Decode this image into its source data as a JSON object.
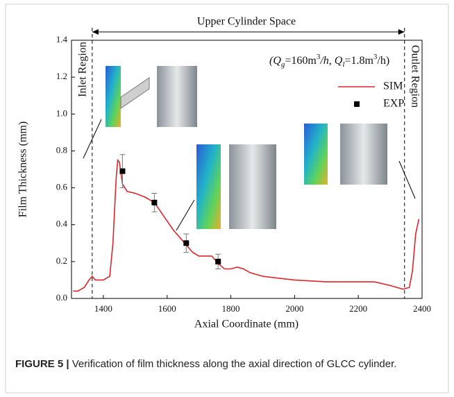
{
  "chart_data": {
    "type": "line",
    "xlabel": "Axial Coordinate (mm)",
    "ylabel": "Film Thickness (mm)",
    "xlim": [
      1300,
      2400
    ],
    "xticks": [
      1400,
      1600,
      1800,
      2000,
      2200,
      2400
    ],
    "ylim": [
      0,
      1.4
    ],
    "yticks": [
      {
        "value": 0,
        "label": "0.0"
      },
      0.2,
      0.4,
      0.6,
      0.8,
      {
        "value": 1,
        "label": "1.0"
      },
      1.2,
      1.4
    ],
    "vlines": [
      1365,
      2345
    ],
    "annotations": {
      "upper": "Upper Cylinder Space",
      "inlet": "Inlet Region",
      "outlet": "Outlet Region",
      "conditions": [
        "(Q",
        "g",
        "=160m",
        "3",
        "/h, Q",
        "l",
        "=1.8m",
        "3",
        "/h)"
      ]
    },
    "series": [
      {
        "name": "SIM",
        "color": "#d9262a",
        "x": [
          1305,
          1320,
          1340,
          1355,
          1365,
          1375,
          1400,
          1420,
          1430,
          1440,
          1445,
          1450,
          1460,
          1475,
          1500,
          1530,
          1560,
          1580,
          1600,
          1620,
          1640,
          1660,
          1680,
          1700,
          1720,
          1740,
          1760,
          1780,
          1800,
          1820,
          1840,
          1860,
          1900,
          1950,
          2000,
          2100,
          2200,
          2250,
          2300,
          2340,
          2360,
          2370,
          2380,
          2390
        ],
        "values": [
          0.04,
          0.04,
          0.06,
          0.1,
          0.12,
          0.1,
          0.1,
          0.12,
          0.3,
          0.65,
          0.75,
          0.74,
          0.62,
          0.58,
          0.57,
          0.55,
          0.52,
          0.47,
          0.42,
          0.37,
          0.33,
          0.29,
          0.25,
          0.23,
          0.23,
          0.23,
          0.19,
          0.16,
          0.16,
          0.17,
          0.16,
          0.14,
          0.12,
          0.11,
          0.1,
          0.09,
          0.09,
          0.09,
          0.07,
          0.05,
          0.06,
          0.15,
          0.35,
          0.43
        ]
      },
      {
        "name": "EXP",
        "color": "#000000",
        "marker": "square",
        "x": [
          1460,
          1560,
          1660,
          1760
        ],
        "values": [
          0.69,
          0.52,
          0.3,
          0.2
        ],
        "errors": [
          0.09,
          0.05,
          0.05,
          0.04
        ]
      }
    ]
  },
  "caption": {
    "label": "FIGURE 5 |",
    "text": "Verification of film thickness along the axial direction of GLCC cylinder."
  }
}
